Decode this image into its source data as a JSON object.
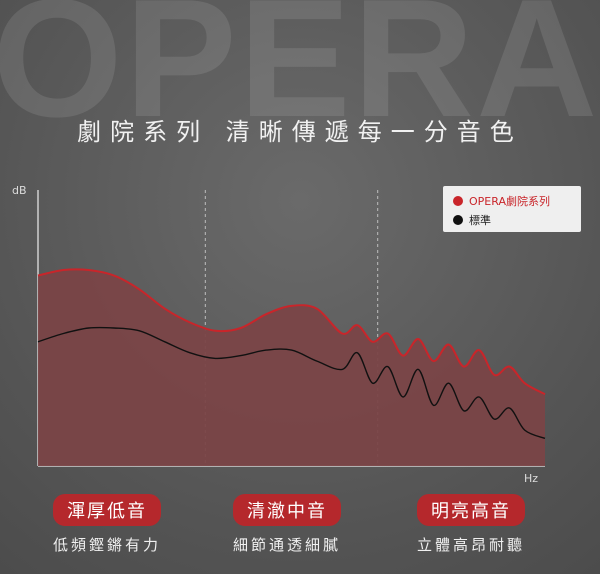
{
  "background_word": "OPERA",
  "headline": "劇院系列 清晰傳遞每一分音色",
  "chart_data": {
    "type": "area",
    "xlabel": "Hz",
    "ylabel": "dB",
    "x": [
      0,
      0.05,
      0.1,
      0.15,
      0.2,
      0.25,
      0.3,
      0.35,
      0.4,
      0.45,
      0.5,
      0.55,
      0.6,
      0.63,
      0.66,
      0.69,
      0.72,
      0.75,
      0.78,
      0.81,
      0.84,
      0.87,
      0.9,
      0.93,
      0.96,
      1.0
    ],
    "series": [
      {
        "name": "OPERA劇院系列",
        "color": "#c9252a",
        "values": [
          0.69,
          0.71,
          0.71,
          0.69,
          0.64,
          0.57,
          0.52,
          0.49,
          0.5,
          0.55,
          0.58,
          0.57,
          0.48,
          0.51,
          0.45,
          0.48,
          0.4,
          0.46,
          0.38,
          0.44,
          0.36,
          0.42,
          0.33,
          0.36,
          0.3,
          0.26
        ]
      },
      {
        "name": "標準",
        "color": "#111111",
        "values": [
          0.45,
          0.48,
          0.5,
          0.5,
          0.49,
          0.45,
          0.41,
          0.39,
          0.4,
          0.42,
          0.42,
          0.38,
          0.35,
          0.41,
          0.3,
          0.36,
          0.25,
          0.35,
          0.22,
          0.3,
          0.2,
          0.25,
          0.17,
          0.21,
          0.13,
          0.1
        ]
      }
    ],
    "ylim": [
      0,
      1
    ],
    "grid": true,
    "vertical_dividers": [
      0.33,
      0.67
    ],
    "legend_position": "top-right",
    "bands": [
      {
        "title": "渾厚低音",
        "desc": "低頻鏗鏘有力"
      },
      {
        "title": "清澈中音",
        "desc": "細節通透細膩"
      },
      {
        "title": "明亮高音",
        "desc": "立體高昂耐聽"
      }
    ]
  },
  "colors": {
    "accent": "#c9252a",
    "band_pill": "#b5282c",
    "fill": "#7a4447"
  }
}
